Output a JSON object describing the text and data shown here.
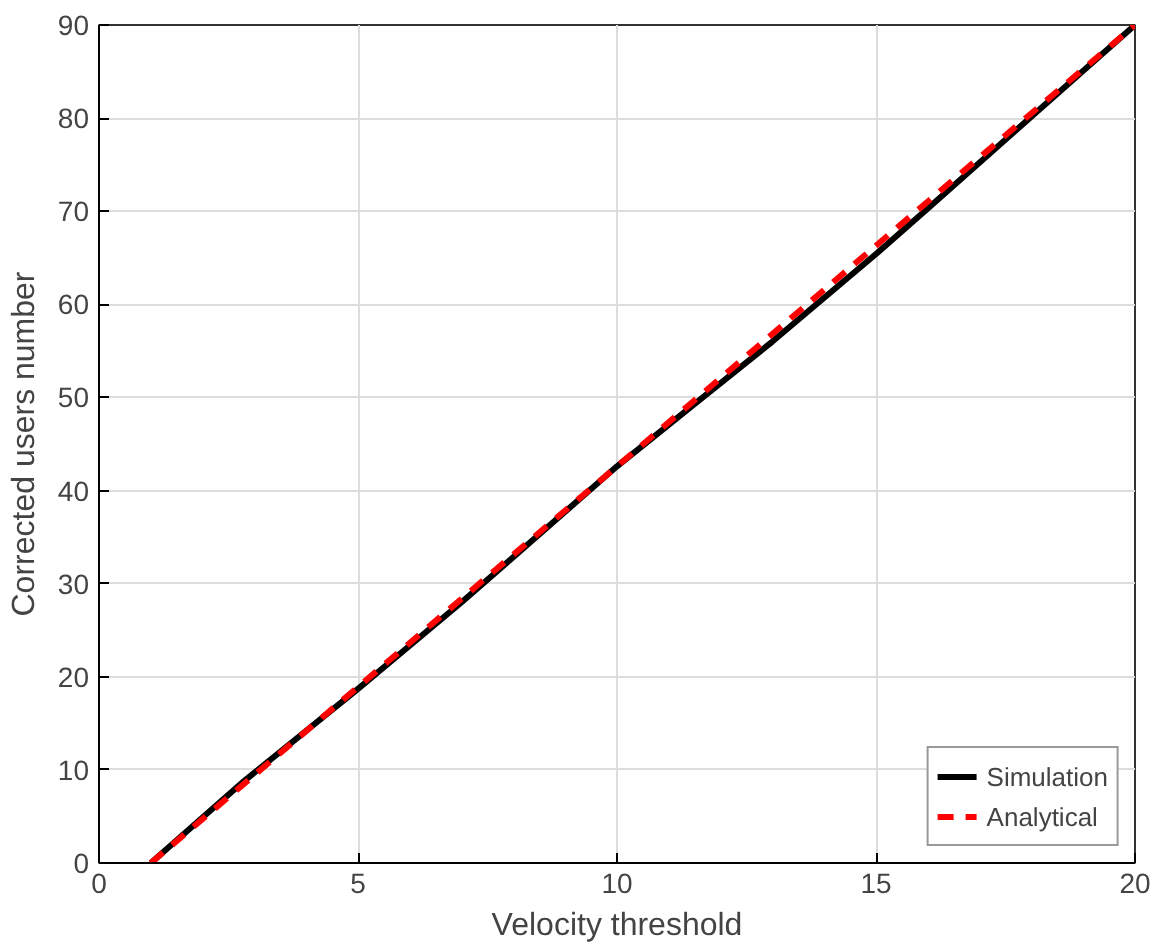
{
  "chart_data": {
    "type": "line",
    "xlabel": "Velocity threshold",
    "ylabel": "Corrected users number",
    "xlim": [
      0,
      20
    ],
    "ylim": [
      0,
      90
    ],
    "xticks": [
      0,
      5,
      10,
      15,
      20
    ],
    "yticks": [
      0,
      10,
      20,
      30,
      40,
      50,
      60,
      70,
      80,
      90
    ],
    "grid": true,
    "legend": "bottom right",
    "series": [
      {
        "name": "Simulation",
        "color": "#000000",
        "line_style": "solid",
        "x": [
          1,
          2.8,
          5,
          7,
          10,
          11.5,
          13,
          15,
          16,
          20
        ],
        "values": [
          0,
          8.8,
          18.7,
          28,
          42.6,
          49.3,
          56,
          65.4,
          70.3,
          90
        ]
      },
      {
        "name": "Analytical",
        "color": "#ff0000",
        "line_style": "dashed",
        "x": [
          1,
          5,
          10,
          15,
          20
        ],
        "values": [
          0,
          18.9,
          42.6,
          66.3,
          90
        ]
      }
    ]
  }
}
